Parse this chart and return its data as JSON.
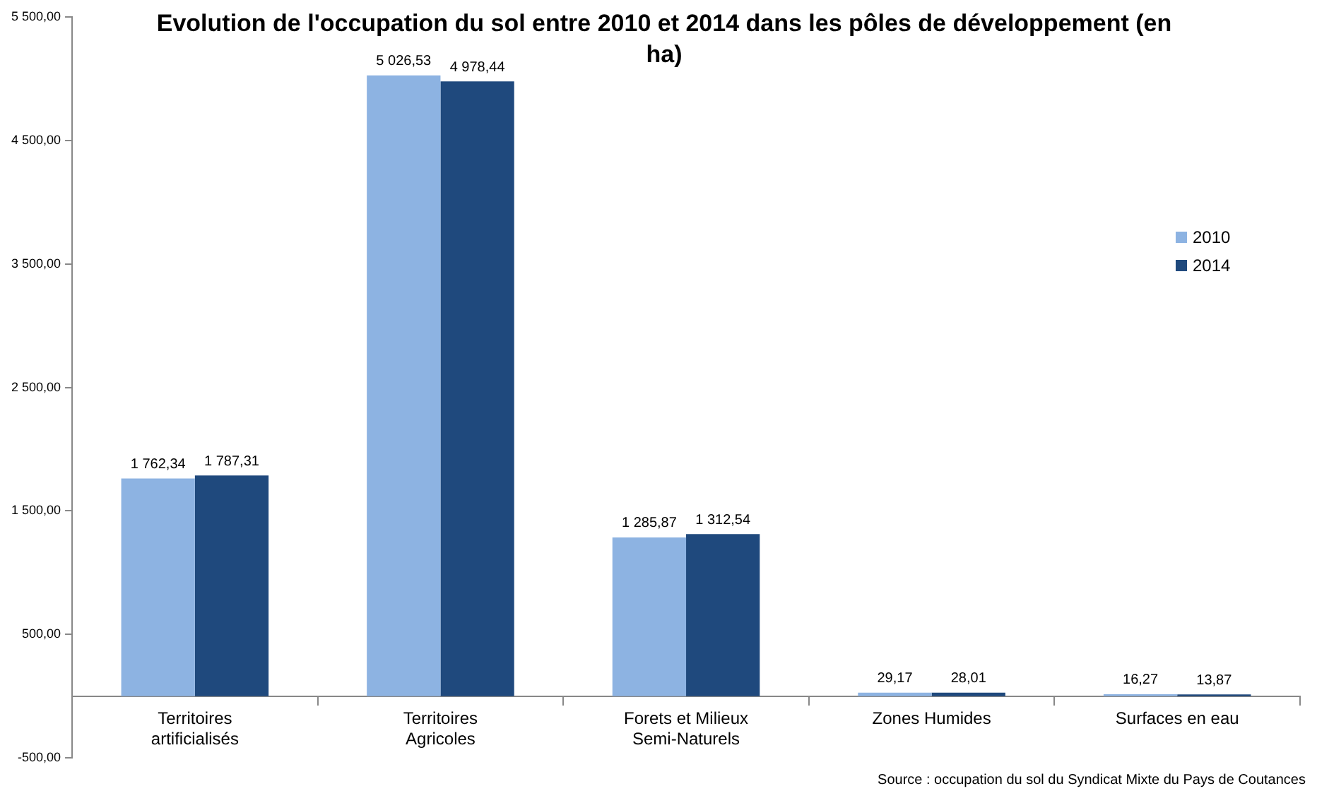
{
  "chart_data": {
    "type": "bar",
    "title": "Evolution de l'occupation du sol entre 2010 et 2014 dans les pôles de développement (en ha)",
    "categories": [
      "Territoires artificialisés",
      "Territoires Agricoles",
      "Forets et Milieux Semi-Naturels",
      "Zones Humides",
      "Surfaces en eau"
    ],
    "series": [
      {
        "name": "2010",
        "color": "#8db3e2",
        "values": [
          1762.34,
          5026.53,
          1285.87,
          29.17,
          16.27
        ],
        "value_labels": [
          "1 762,34",
          "5 026,53",
          "1 285,87",
          "29,17",
          "16,27"
        ]
      },
      {
        "name": "2014",
        "color": "#1f497d",
        "values": [
          1787.31,
          4978.44,
          1312.54,
          28.01,
          13.87
        ],
        "value_labels": [
          "1 787,31",
          "4 978,44",
          "1 312,54",
          "28,01",
          "13,87"
        ]
      }
    ],
    "ylim": [
      -500,
      5500
    ],
    "yticks": [
      {
        "value": -500,
        "label": "-500,00"
      },
      {
        "value": 500,
        "label": "500,00"
      },
      {
        "value": 1500,
        "label": "1 500,00"
      },
      {
        "value": 2500,
        "label": "2 500,00"
      },
      {
        "value": 3500,
        "label": "3 500,00"
      },
      {
        "value": 4500,
        "label": "4 500,00"
      },
      {
        "value": 5500,
        "label": "5 500,00"
      }
    ],
    "grid": false,
    "legend": "right",
    "annotations": [
      "Source : occupation du sol du Syndicat Mixte du Pays de Coutances"
    ]
  }
}
